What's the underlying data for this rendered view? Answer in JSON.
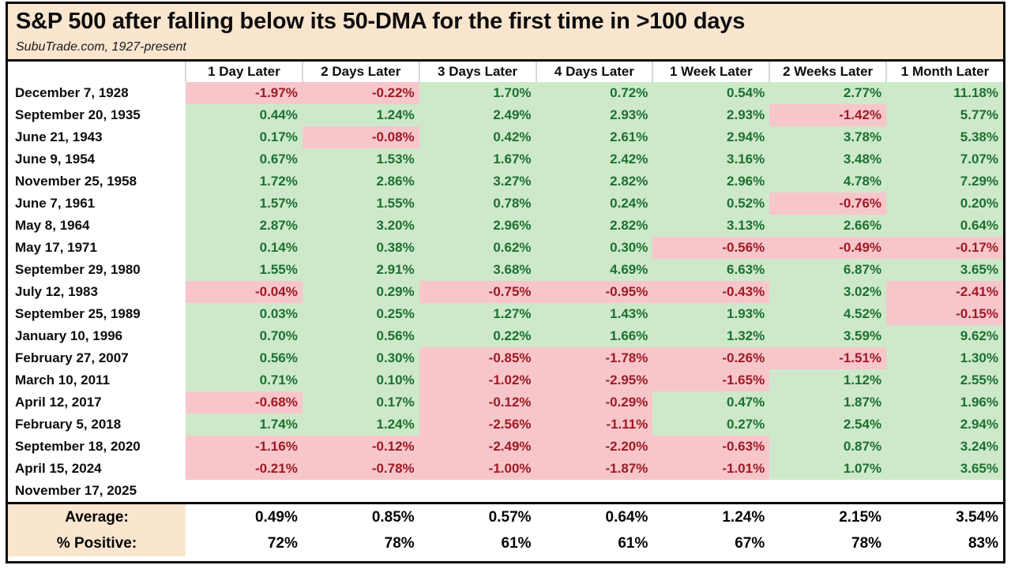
{
  "title": "S&P 500 after falling below its 50-DMA for the first time in >100 days",
  "subtitle": "SubuTrade.com, 1927-present",
  "colors": {
    "title_bg": "#FAE5CE",
    "positive_bg": "#CDE9CA",
    "positive_text": "#1E7030",
    "negative_bg": "#F7C6CB",
    "negative_text": "#9E1B24",
    "border": "#0A0A0A"
  },
  "chart_data": {
    "type": "table",
    "columns": [
      "1 Day Later",
      "2 Days Later",
      "3 Days Later",
      "4 Days Later",
      "1 Week Later",
      "2 Weeks Later",
      "1 Month Later"
    ],
    "rows": [
      {
        "date": "December 7, 1928",
        "values": [
          "-1.97%",
          "-0.22%",
          "1.70%",
          "0.72%",
          "0.54%",
          "2.77%",
          "11.18%"
        ]
      },
      {
        "date": "September 20, 1935",
        "values": [
          "0.44%",
          "1.24%",
          "2.49%",
          "2.93%",
          "2.93%",
          "-1.42%",
          "5.77%"
        ]
      },
      {
        "date": "June 21, 1943",
        "values": [
          "0.17%",
          "-0.08%",
          "0.42%",
          "2.61%",
          "2.94%",
          "3.78%",
          "5.38%"
        ]
      },
      {
        "date": "June 9, 1954",
        "values": [
          "0.67%",
          "1.53%",
          "1.67%",
          "2.42%",
          "3.16%",
          "3.48%",
          "7.07%"
        ]
      },
      {
        "date": "November 25, 1958",
        "values": [
          "1.72%",
          "2.86%",
          "3.27%",
          "2.82%",
          "2.96%",
          "4.78%",
          "7.29%"
        ]
      },
      {
        "date": "June 7, 1961",
        "values": [
          "1.57%",
          "1.55%",
          "0.78%",
          "0.24%",
          "0.52%",
          "-0.76%",
          "0.20%"
        ]
      },
      {
        "date": "May 8, 1964",
        "values": [
          "2.87%",
          "3.20%",
          "2.96%",
          "2.82%",
          "3.13%",
          "2.66%",
          "0.64%"
        ]
      },
      {
        "date": "May 17, 1971",
        "values": [
          "0.14%",
          "0.38%",
          "0.62%",
          "0.30%",
          "-0.56%",
          "-0.49%",
          "-0.17%"
        ]
      },
      {
        "date": "September 29, 1980",
        "values": [
          "1.55%",
          "2.91%",
          "3.68%",
          "4.69%",
          "6.63%",
          "6.87%",
          "3.65%"
        ]
      },
      {
        "date": "July 12, 1983",
        "values": [
          "-0.04%",
          "0.29%",
          "-0.75%",
          "-0.95%",
          "-0.43%",
          "3.02%",
          "-2.41%"
        ]
      },
      {
        "date": "September 25, 1989",
        "values": [
          "0.03%",
          "0.25%",
          "1.27%",
          "1.43%",
          "1.93%",
          "4.52%",
          "-0.15%"
        ]
      },
      {
        "date": "January 10, 1996",
        "values": [
          "0.70%",
          "0.56%",
          "0.22%",
          "1.66%",
          "1.32%",
          "3.59%",
          "9.62%"
        ]
      },
      {
        "date": "February 27, 2007",
        "values": [
          "0.56%",
          "0.30%",
          "-0.85%",
          "-1.78%",
          "-0.26%",
          "-1.51%",
          "1.30%"
        ]
      },
      {
        "date": "March 10, 2011",
        "values": [
          "0.71%",
          "0.10%",
          "-1.02%",
          "-2.95%",
          "-1.65%",
          "1.12%",
          "2.55%"
        ]
      },
      {
        "date": "April 12, 2017",
        "values": [
          "-0.68%",
          "0.17%",
          "-0.12%",
          "-0.29%",
          "0.47%",
          "1.87%",
          "1.96%"
        ]
      },
      {
        "date": "February 5, 2018",
        "values": [
          "1.74%",
          "1.24%",
          "-2.56%",
          "-1.11%",
          "0.27%",
          "2.54%",
          "2.94%"
        ]
      },
      {
        "date": "September 18, 2020",
        "values": [
          "-1.16%",
          "-0.12%",
          "-2.49%",
          "-2.20%",
          "-0.63%",
          "0.87%",
          "3.24%"
        ]
      },
      {
        "date": "April 15, 2024",
        "values": [
          "-0.21%",
          "-0.78%",
          "-1.00%",
          "-1.87%",
          "-1.01%",
          "1.07%",
          "3.65%"
        ]
      },
      {
        "date": "November 17, 2025",
        "values": [
          "",
          "",
          "",
          "",
          "",
          "",
          ""
        ]
      }
    ],
    "summary_rows": [
      {
        "label": "Average:",
        "values": [
          "0.49%",
          "0.85%",
          "0.57%",
          "0.64%",
          "1.24%",
          "2.15%",
          "3.54%"
        ]
      },
      {
        "label": "% Positive:",
        "values": [
          "72%",
          "78%",
          "61%",
          "61%",
          "67%",
          "78%",
          "83%"
        ]
      }
    ]
  }
}
